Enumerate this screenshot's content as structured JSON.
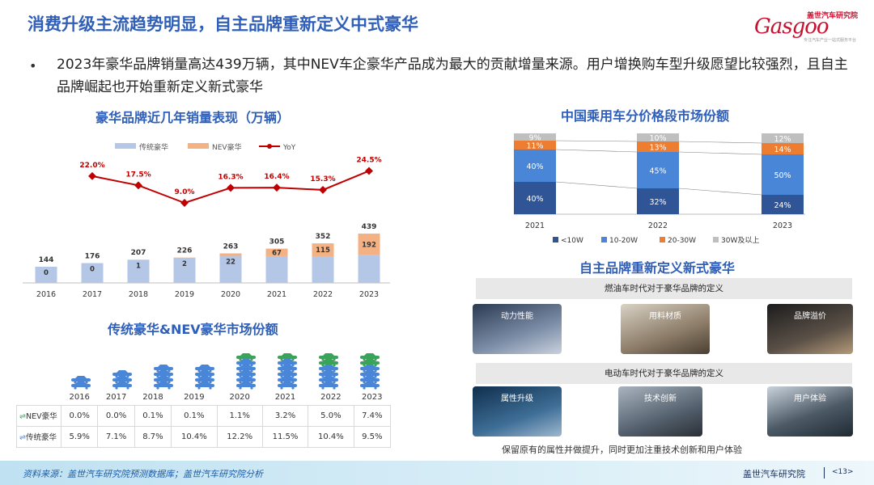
{
  "header": {
    "title": "消费升级主流趋势明显，自主品牌重新定义中式豪华",
    "logo": {
      "top": "盖世汽车研究院",
      "main": "Gasgoo",
      "sub": "专注汽车产业一站式服务平台"
    }
  },
  "bullet": {
    "dot": "•",
    "text": "2023年豪华品牌销量高达439万辆，其中NEV车企豪华产品成为最大的贡献增量来源。用户增换购车型升级愿望比较强烈，且自主品牌崛起也开始重新定义新式豪华"
  },
  "colors": {
    "title": "#2f5fb8",
    "traditional": "#b4c7e7",
    "nev": "#f4b183",
    "yoy": "#c00000",
    "lt10": "#2f5597",
    "w10_20": "#4a86d8",
    "w20_30": "#ed7d31",
    "w30p": "#bfbfbf"
  },
  "chart_data": [
    {
      "type": "bar",
      "title": "豪华品牌近几年销量表现（万辆）",
      "categories": [
        "2016",
        "2017",
        "2018",
        "2019",
        "2020",
        "2021",
        "2022",
        "2023"
      ],
      "series": [
        {
          "name": "传统豪华",
          "values": [
            144,
            176,
            206,
            224,
            241,
            238,
            237,
            247
          ]
        },
        {
          "name": "NEV豪华",
          "values": [
            0,
            0,
            1,
            2,
            22,
            67,
            115,
            192
          ]
        },
        {
          "name": "YoY",
          "values": [
            null,
            22.0,
            17.5,
            9.0,
            16.3,
            16.4,
            15.3,
            24.5
          ],
          "labels": [
            "",
            "22.0%",
            "17.5%",
            "9.0%",
            "16.3%",
            "16.4%",
            "15.3%",
            "24.5%"
          ]
        }
      ],
      "totals": [
        144,
        176,
        207,
        226,
        263,
        305,
        352,
        439
      ],
      "nev_labels": [
        "0",
        "0",
        "1",
        "2",
        "22",
        "67",
        "115",
        "192"
      ],
      "legend_position": "top"
    },
    {
      "type": "bar",
      "title": "中国乘用车分价格段市场份额",
      "categories": [
        "2021",
        "2022",
        "2023"
      ],
      "series": [
        {
          "name": "<10W",
          "values": [
            40,
            32,
            24
          ]
        },
        {
          "name": "10-20W",
          "values": [
            40,
            45,
            50
          ]
        },
        {
          "name": "20-30W",
          "values": [
            11,
            13,
            14
          ]
        },
        {
          "name": "30W及以上",
          "values": [
            9,
            10,
            12
          ]
        }
      ],
      "labels": [
        [
          "40%",
          "40%",
          "11%",
          "9%"
        ],
        [
          "32%",
          "45%",
          "13%",
          "10%"
        ],
        [
          "24%",
          "50%",
          "14%",
          "12%"
        ]
      ],
      "legend_position": "bottom"
    },
    {
      "type": "table",
      "title": "传统豪华&NEV豪华市场份额",
      "columns": [
        "2016",
        "2017",
        "2018",
        "2019",
        "2020",
        "2021",
        "2022",
        "2023"
      ],
      "rows": [
        {
          "name": "NEV豪华",
          "values": [
            "0.0%",
            "0.0%",
            "0.1%",
            "0.1%",
            "1.1%",
            "3.2%",
            "5.0%",
            "7.4%"
          ]
        },
        {
          "name": "传统豪华",
          "values": [
            "5.9%",
            "7.1%",
            "8.7%",
            "10.4%",
            "12.2%",
            "11.5%",
            "10.4%",
            "9.5%"
          ]
        }
      ]
    }
  ],
  "right_bottom": {
    "title": "自主品牌重新定义新式豪华",
    "band1": "燃油车时代对于豪华品牌的定义",
    "band2": "电动车时代对于豪华品牌的定义",
    "pics1": [
      {
        "label": "动力性能"
      },
      {
        "label": "用料材质"
      },
      {
        "label": "品牌溢价"
      }
    ],
    "pics2": [
      {
        "label": "属性升级"
      },
      {
        "label": "技术创新"
      },
      {
        "label": "用户体验"
      }
    ],
    "caption": "保留原有的属性并做提升，同时更加注重技术创新和用户体验"
  },
  "footer": {
    "source": "资料来源：盖世汽车研究院预测数据库；盖世汽车研究院分析",
    "org": "盖世汽车研究院",
    "page": "<13>"
  }
}
